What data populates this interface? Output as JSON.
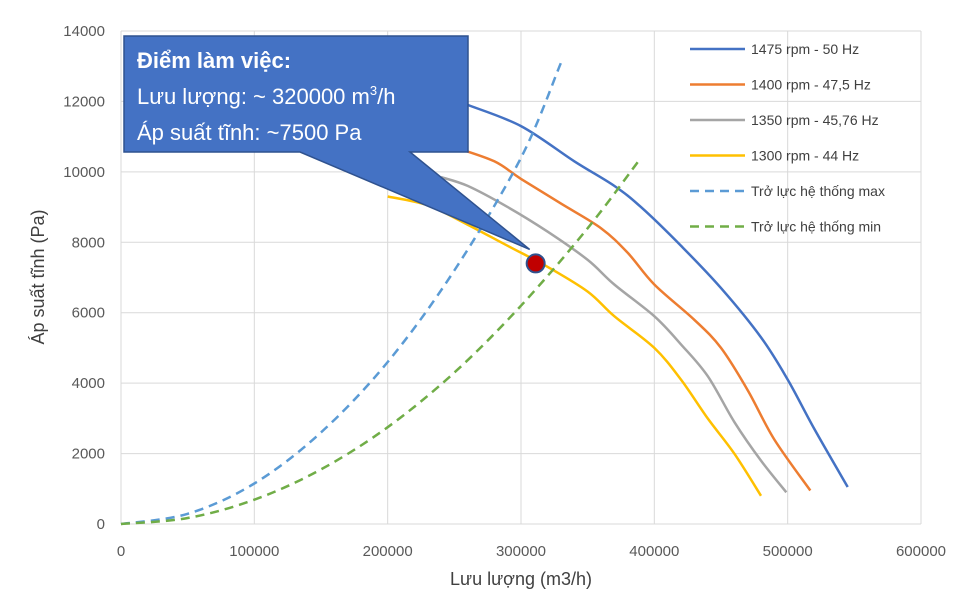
{
  "chart_data": {
    "type": "line",
    "xlabel": "Lưu lượng (m3/h)",
    "ylabel": "Áp suất tĩnh (Pa)",
    "xlim": [
      0,
      600000
    ],
    "ylim": [
      0,
      14000
    ],
    "x_ticks": [
      "0",
      "100000",
      "200000",
      "300000",
      "400000",
      "500000",
      "600000"
    ],
    "y_ticks": [
      "0",
      "2000",
      "4000",
      "6000",
      "8000",
      "10000",
      "12000",
      "14000"
    ],
    "grid": true,
    "legend_position": "top-right",
    "series": [
      {
        "name": "1475 rpm - 50 Hz",
        "color": "#4472C4",
        "dash": "solid",
        "points": [
          [
            260000,
            11900
          ],
          [
            300000,
            11300
          ],
          [
            340000,
            10300
          ],
          [
            370000,
            9600
          ],
          [
            390000,
            9000
          ],
          [
            420000,
            7900
          ],
          [
            450000,
            6700
          ],
          [
            480000,
            5300
          ],
          [
            500000,
            4100
          ],
          [
            520000,
            2700
          ],
          [
            545000,
            1050
          ]
        ]
      },
      {
        "name": "1400 rpm - 47,5 Hz",
        "color": "#ED7D31",
        "dash": "solid",
        "points": [
          [
            250000,
            10700
          ],
          [
            280000,
            10300
          ],
          [
            300000,
            9800
          ],
          [
            330000,
            9100
          ],
          [
            360000,
            8400
          ],
          [
            380000,
            7700
          ],
          [
            400000,
            6800
          ],
          [
            430000,
            5800
          ],
          [
            450000,
            5000
          ],
          [
            470000,
            3800
          ],
          [
            490000,
            2400
          ],
          [
            517000,
            950
          ]
        ]
      },
      {
        "name": "1350 rpm - 45,76 Hz",
        "color": "#A5A5A5",
        "dash": "solid",
        "points": [
          [
            240000,
            9850
          ],
          [
            260000,
            9600
          ],
          [
            290000,
            9000
          ],
          [
            320000,
            8300
          ],
          [
            350000,
            7500
          ],
          [
            370000,
            6800
          ],
          [
            400000,
            5900
          ],
          [
            420000,
            5100
          ],
          [
            440000,
            4200
          ],
          [
            460000,
            2900
          ],
          [
            480000,
            1800
          ],
          [
            499000,
            900
          ]
        ]
      },
      {
        "name": "1300 rpm - 44 Hz",
        "color": "#FFC000",
        "dash": "solid",
        "points": [
          [
            200000,
            9300
          ],
          [
            230000,
            9050
          ],
          [
            260000,
            8500
          ],
          [
            290000,
            7900
          ],
          [
            320000,
            7300
          ],
          [
            350000,
            6600
          ],
          [
            370000,
            5900
          ],
          [
            400000,
            5000
          ],
          [
            420000,
            4100
          ],
          [
            440000,
            3000
          ],
          [
            460000,
            2000
          ],
          [
            480000,
            800
          ]
        ]
      },
      {
        "name": "Trở lực hệ thống max",
        "color": "#5B9BD5",
        "dash": "dashed",
        "points": [
          [
            0,
            0
          ],
          [
            50000,
            290
          ],
          [
            100000,
            1150
          ],
          [
            150000,
            2600
          ],
          [
            200000,
            4600
          ],
          [
            250000,
            7200
          ],
          [
            300000,
            10400
          ],
          [
            330000,
            13100
          ]
        ]
      },
      {
        "name": "Trở lực hệ thống min",
        "color": "#70AD47",
        "dash": "dashed",
        "points": [
          [
            0,
            0
          ],
          [
            50000,
            170
          ],
          [
            100000,
            690
          ],
          [
            150000,
            1550
          ],
          [
            200000,
            2750
          ],
          [
            250000,
            4300
          ],
          [
            300000,
            6200
          ],
          [
            350000,
            8400
          ],
          [
            390000,
            10400
          ]
        ]
      }
    ],
    "operating_point": {
      "x": 311000,
      "y": 7400,
      "color": "#C00000"
    },
    "callout": {
      "title": "Điểm làm việc:",
      "line1_prefix": "Lưu lượng: ~ 320000 m",
      "line1_sup": "3",
      "line1_suffix": "/h",
      "line2": "Áp suất tĩnh: ~7500 Pa",
      "fill": "#4472C4"
    }
  }
}
